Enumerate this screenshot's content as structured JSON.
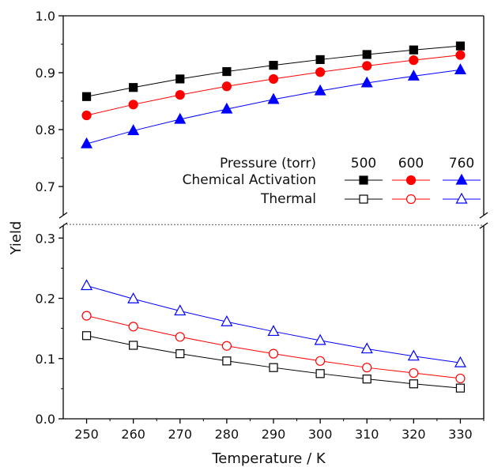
{
  "chart_data": {
    "type": "line",
    "xlabel": "Temperature / K",
    "ylabel": "Yield",
    "xlim": [
      245,
      335
    ],
    "x_ticks": [
      "250",
      "260",
      "270",
      "280",
      "290",
      "300",
      "310",
      "320",
      "330"
    ],
    "axis_break": {
      "lower_range": [
        0.0,
        0.32
      ],
      "upper_range": [
        0.65,
        1.0
      ]
    },
    "lower_y_ticks": [
      "0.0",
      "0.1",
      "0.2",
      "0.3"
    ],
    "upper_y_ticks": [
      "0.7",
      "0.8",
      "0.9",
      "1.0"
    ],
    "x": [
      250,
      260,
      270,
      280,
      290,
      300,
      310,
      320,
      330
    ],
    "series": [
      {
        "group": "Chemical Activation",
        "pressure": "500",
        "color": "#000000",
        "marker": "square",
        "filled": true,
        "values": [
          0.858,
          0.874,
          0.889,
          0.902,
          0.913,
          0.923,
          0.932,
          0.94,
          0.947
        ]
      },
      {
        "group": "Chemical Activation",
        "pressure": "600",
        "color": "#ff0000",
        "marker": "circle",
        "filled": true,
        "values": [
          0.825,
          0.844,
          0.861,
          0.876,
          0.889,
          0.901,
          0.912,
          0.922,
          0.931
        ]
      },
      {
        "group": "Chemical Activation",
        "pressure": "760",
        "color": "#0000ff",
        "marker": "triangle",
        "filled": true,
        "values": [
          0.775,
          0.798,
          0.818,
          0.836,
          0.853,
          0.868,
          0.882,
          0.894,
          0.905
        ]
      },
      {
        "group": "Thermal",
        "pressure": "500",
        "color": "#000000",
        "marker": "square",
        "filled": false,
        "values": [
          0.138,
          0.122,
          0.108,
          0.096,
          0.085,
          0.075,
          0.066,
          0.058,
          0.051
        ]
      },
      {
        "group": "Thermal",
        "pressure": "600",
        "color": "#ff0000",
        "marker": "circle",
        "filled": false,
        "values": [
          0.171,
          0.153,
          0.136,
          0.121,
          0.108,
          0.096,
          0.085,
          0.076,
          0.067
        ]
      },
      {
        "group": "Thermal",
        "pressure": "760",
        "color": "#0000ff",
        "marker": "triangle",
        "filled": false,
        "values": [
          0.221,
          0.199,
          0.179,
          0.161,
          0.145,
          0.13,
          0.116,
          0.104,
          0.093
        ]
      }
    ],
    "legend": {
      "header": "Pressure (torr)",
      "pressures": [
        "500",
        "600",
        "760"
      ],
      "rows": [
        "Chemical Activation",
        "Thermal"
      ]
    }
  }
}
